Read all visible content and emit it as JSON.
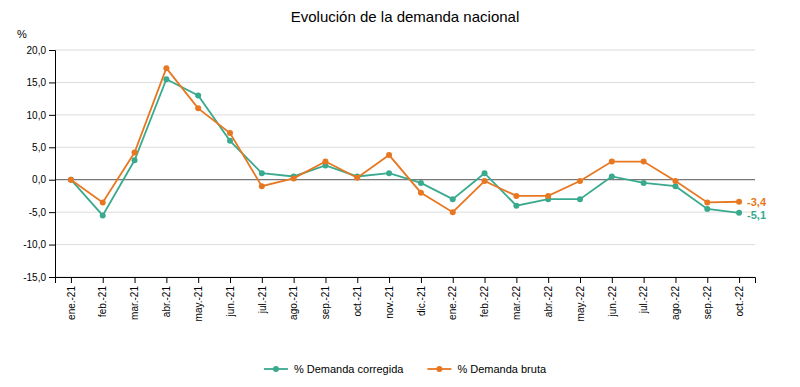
{
  "chart_data": {
    "type": "line",
    "title": "Evolución de la demanda nacional",
    "ylabel": "%",
    "categories": [
      "ene.-21",
      "feb.-21",
      "mar.-21",
      "abr.-21",
      "may.-21",
      "jun.-21",
      "jul.-21",
      "ago.-21",
      "sep.-21",
      "oct.-21",
      "nov.-21",
      "dic.-21",
      "ene.-22",
      "feb.-22",
      "mar.-22",
      "abr.-22",
      "may.-22",
      "jun.-22",
      "jul.-22",
      "ago.-22",
      "sep.-22",
      "oct.-22"
    ],
    "series": [
      {
        "name": "% Demanda corregida",
        "color": "#3aaa8e",
        "marker": "circle",
        "values": [
          0.0,
          -5.5,
          3.0,
          15.5,
          13.0,
          6.0,
          1.0,
          0.5,
          2.2,
          0.5,
          1.0,
          -0.5,
          -3.0,
          1.0,
          -4.0,
          -3.0,
          -3.0,
          0.5,
          -0.5,
          -1.0,
          -4.5,
          -5.1
        ]
      },
      {
        "name": "% Demanda bruta",
        "color": "#e87722",
        "marker": "circle",
        "values": [
          0.0,
          -3.5,
          4.2,
          17.2,
          11.0,
          7.2,
          -1.0,
          0.2,
          2.8,
          0.3,
          3.8,
          -2.0,
          -5.0,
          -0.2,
          -2.5,
          -2.5,
          -0.2,
          2.8,
          2.8,
          -0.2,
          -3.5,
          -3.4
        ]
      }
    ],
    "annotations": [
      {
        "text": "-3,4",
        "x": "oct.-22",
        "y": -3.4,
        "color": "#e87722"
      },
      {
        "text": "-5,1",
        "x": "oct.-22",
        "y": -5.1,
        "color": "#3aaa8e"
      }
    ],
    "ylim": [
      -15.0,
      20.0
    ],
    "yticks": [
      {
        "value": -15.0,
        "label": "-15,0"
      },
      {
        "value": -10.0,
        "label": "-10,0"
      },
      {
        "value": -5.0,
        "label": "-5,0"
      },
      {
        "value": 0.0,
        "label": "0,0"
      },
      {
        "value": 5.0,
        "label": "5,0"
      },
      {
        "value": 10.0,
        "label": "10,0"
      },
      {
        "value": 15.0,
        "label": "15,0"
      },
      {
        "value": 20.0,
        "label": "20,0"
      }
    ],
    "grid": true,
    "legend": "bottom"
  }
}
